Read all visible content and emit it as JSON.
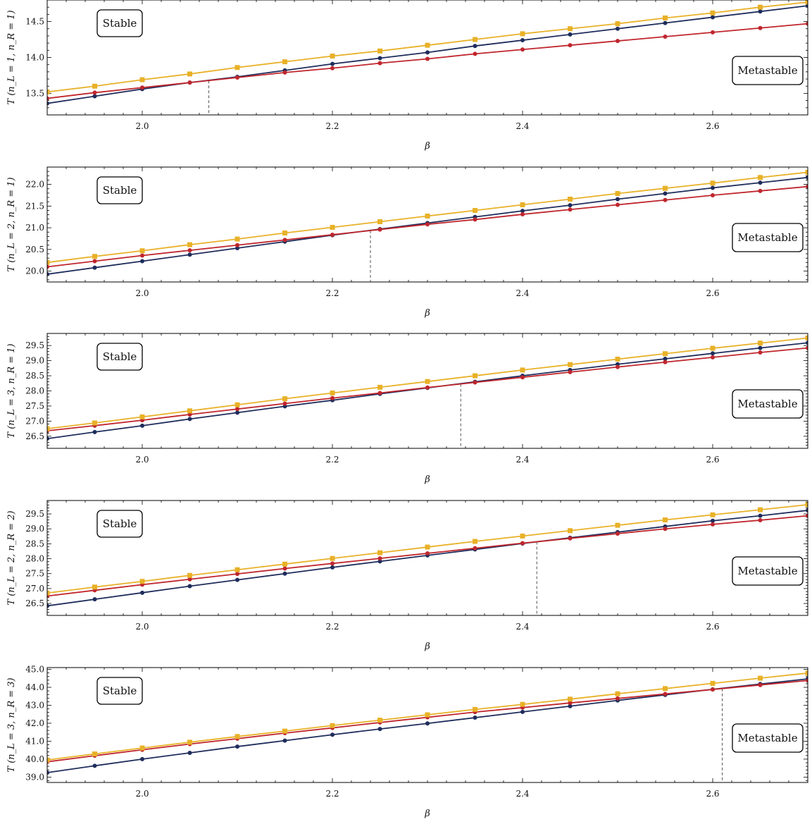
{
  "colors": {
    "series_a": "#1f2d5c",
    "series_b": "#c0262d",
    "series_c": "#e8b128",
    "divider": "#555555",
    "frame": "#000000"
  },
  "chart_data": [
    {
      "type": "line",
      "ylabel": "T (n_L = 1, n_R = 1)",
      "xlabel": "β",
      "xlim": [
        1.9,
        2.7
      ],
      "ylim": [
        13.2,
        14.8
      ],
      "xticks": [
        "2.0",
        "2.2",
        "2.4",
        "2.6"
      ],
      "yticks": [
        "13.5",
        "14.0",
        "14.5"
      ],
      "grid": false,
      "annotations": {
        "top_left": "Stable",
        "right": "Metastable"
      },
      "crossover_beta": 2.07,
      "x": [
        1.9,
        1.95,
        2.0,
        2.05,
        2.1,
        2.15,
        2.2,
        2.25,
        2.3,
        2.35,
        2.4,
        2.45,
        2.5,
        2.55,
        2.6,
        2.65,
        2.7
      ],
      "series": [
        {
          "marker": "circle",
          "color": "#1f2d5c",
          "values": [
            13.36,
            13.46,
            13.56,
            13.65,
            13.73,
            13.82,
            13.91,
            13.99,
            14.07,
            14.16,
            14.24,
            14.32,
            14.4,
            14.48,
            14.56,
            14.64,
            14.72
          ]
        },
        {
          "marker": "circle",
          "color": "#c0262d",
          "values": [
            13.43,
            13.51,
            13.58,
            13.65,
            13.72,
            13.79,
            13.85,
            13.92,
            13.98,
            14.05,
            14.11,
            14.17,
            14.23,
            14.29,
            14.35,
            14.41,
            14.47
          ]
        },
        {
          "marker": "square",
          "color": "#e8b128",
          "values": [
            13.52,
            13.6,
            13.69,
            13.77,
            13.86,
            13.94,
            14.02,
            14.09,
            14.17,
            14.25,
            14.33,
            14.4,
            14.47,
            14.55,
            14.62,
            14.7,
            14.77
          ]
        }
      ]
    },
    {
      "type": "line",
      "ylabel": "T (n_L = 2, n_R = 1)",
      "xlabel": "β",
      "xlim": [
        1.9,
        2.7
      ],
      "ylim": [
        19.75,
        22.4
      ],
      "xticks": [
        "2.0",
        "2.2",
        "2.4",
        "2.6"
      ],
      "yticks": [
        "20.0",
        "20.5",
        "21.0",
        "21.5",
        "22.0"
      ],
      "grid": false,
      "annotations": {
        "top_left": "Stable",
        "right": "Metastable"
      },
      "crossover_beta": 2.24,
      "x": [
        1.9,
        1.95,
        2.0,
        2.05,
        2.1,
        2.15,
        2.2,
        2.25,
        2.3,
        2.35,
        2.4,
        2.45,
        2.5,
        2.55,
        2.6,
        2.65,
        2.7
      ],
      "series": [
        {
          "marker": "circle",
          "color": "#1f2d5c",
          "values": [
            19.93,
            20.08,
            20.23,
            20.38,
            20.53,
            20.68,
            20.83,
            20.97,
            21.11,
            21.25,
            21.39,
            21.52,
            21.66,
            21.79,
            21.92,
            22.04,
            22.16
          ]
        },
        {
          "marker": "circle",
          "color": "#c0262d",
          "values": [
            20.1,
            20.23,
            20.36,
            20.48,
            20.6,
            20.72,
            20.84,
            20.96,
            21.08,
            21.19,
            21.31,
            21.42,
            21.53,
            21.64,
            21.75,
            21.85,
            21.95
          ]
        },
        {
          "marker": "square",
          "color": "#e8b128",
          "values": [
            20.2,
            20.34,
            20.47,
            20.61,
            20.74,
            20.88,
            21.01,
            21.14,
            21.27,
            21.4,
            21.53,
            21.66,
            21.79,
            21.91,
            22.03,
            22.16,
            22.28
          ]
        }
      ]
    },
    {
      "type": "line",
      "ylabel": "T (n_L = 3, n_R = 1)",
      "xlabel": "β",
      "xlim": [
        1.9,
        2.7
      ],
      "ylim": [
        26.1,
        29.9
      ],
      "xticks": [
        "2.0",
        "2.2",
        "2.4",
        "2.6"
      ],
      "yticks": [
        "26.5",
        "27.0",
        "27.5",
        "28.0",
        "28.5",
        "29.0",
        "29.5"
      ],
      "grid": false,
      "annotations": {
        "top_left": "Stable",
        "right": "Metastable"
      },
      "crossover_beta": 2.335,
      "x": [
        1.9,
        1.95,
        2.0,
        2.05,
        2.1,
        2.15,
        2.2,
        2.25,
        2.3,
        2.35,
        2.4,
        2.45,
        2.5,
        2.55,
        2.6,
        2.65,
        2.7
      ],
      "series": [
        {
          "marker": "circle",
          "color": "#1f2d5c",
          "values": [
            26.42,
            26.64,
            26.85,
            27.07,
            27.28,
            27.49,
            27.69,
            27.9,
            28.1,
            28.3,
            28.5,
            28.69,
            28.88,
            29.06,
            29.24,
            29.42,
            29.59
          ]
        },
        {
          "marker": "circle",
          "color": "#c0262d",
          "values": [
            26.68,
            26.85,
            27.03,
            27.22,
            27.4,
            27.58,
            27.76,
            27.93,
            28.11,
            28.28,
            28.45,
            28.62,
            28.79,
            28.95,
            29.11,
            29.27,
            29.42
          ]
        },
        {
          "marker": "square",
          "color": "#e8b128",
          "values": [
            26.75,
            26.94,
            27.14,
            27.34,
            27.54,
            27.74,
            27.93,
            28.12,
            28.31,
            28.5,
            28.69,
            28.87,
            29.05,
            29.23,
            29.41,
            29.58,
            29.75
          ]
        }
      ]
    },
    {
      "type": "line",
      "ylabel": "T (n_L = 2, n_R = 2)",
      "xlabel": "β",
      "xlim": [
        1.9,
        2.7
      ],
      "ylim": [
        26.1,
        29.95
      ],
      "xticks": [
        "2.0",
        "2.2",
        "2.4",
        "2.6"
      ],
      "yticks": [
        "26.5",
        "27.0",
        "27.5",
        "28.0",
        "28.5",
        "29.0",
        "29.5"
      ],
      "grid": false,
      "annotations": {
        "top_left": "Stable",
        "right": "Metastable"
      },
      "crossover_beta": 2.415,
      "x": [
        1.9,
        1.95,
        2.0,
        2.05,
        2.1,
        2.15,
        2.2,
        2.25,
        2.3,
        2.35,
        2.4,
        2.45,
        2.5,
        2.55,
        2.6,
        2.65,
        2.7
      ],
      "series": [
        {
          "marker": "circle",
          "color": "#1f2d5c",
          "values": [
            26.42,
            26.64,
            26.86,
            27.08,
            27.29,
            27.5,
            27.71,
            27.91,
            28.11,
            28.31,
            28.51,
            28.7,
            28.89,
            29.08,
            29.27,
            29.44,
            29.62
          ]
        },
        {
          "marker": "circle",
          "color": "#c0262d",
          "values": [
            26.75,
            26.94,
            27.13,
            27.31,
            27.49,
            27.67,
            27.84,
            28.01,
            28.18,
            28.35,
            28.52,
            28.68,
            28.84,
            29.0,
            29.15,
            29.29,
            29.44
          ]
        },
        {
          "marker": "square",
          "color": "#e8b128",
          "values": [
            26.85,
            27.05,
            27.24,
            27.44,
            27.63,
            27.82,
            28.01,
            28.2,
            28.39,
            28.58,
            28.76,
            28.94,
            29.12,
            29.3,
            29.47,
            29.64,
            29.81
          ]
        }
      ]
    },
    {
      "type": "line",
      "ylabel": "T (n_L = 3, n_R = 3)",
      "xlabel": "β",
      "xlim": [
        1.9,
        2.7
      ],
      "ylim": [
        38.7,
        45.1
      ],
      "xticks": [
        "2.0",
        "2.2",
        "2.4",
        "2.6"
      ],
      "yticks": [
        "39.0",
        "40.0",
        "41.0",
        "42.0",
        "43.0",
        "44.0",
        "45.0"
      ],
      "grid": false,
      "annotations": {
        "top_left": "Stable",
        "right": "Metastable"
      },
      "crossover_beta": 2.61,
      "x": [
        1.9,
        1.95,
        2.0,
        2.05,
        2.1,
        2.15,
        2.2,
        2.25,
        2.3,
        2.35,
        2.4,
        2.45,
        2.5,
        2.55,
        2.6,
        2.65,
        2.7
      ],
      "series": [
        {
          "marker": "circle",
          "color": "#1f2d5c",
          "values": [
            39.25,
            39.63,
            40.0,
            40.35,
            40.7,
            41.03,
            41.36,
            41.68,
            41.99,
            42.31,
            42.63,
            42.95,
            43.27,
            43.58,
            43.89,
            44.18,
            44.47
          ]
        },
        {
          "marker": "circle",
          "color": "#c0262d",
          "values": [
            39.85,
            40.19,
            40.52,
            40.84,
            41.14,
            41.45,
            41.74,
            42.04,
            42.33,
            42.62,
            42.87,
            43.13,
            43.38,
            43.63,
            43.88,
            44.13,
            44.38
          ]
        },
        {
          "marker": "square",
          "color": "#e8b128",
          "values": [
            39.95,
            40.29,
            40.62,
            40.94,
            41.26,
            41.56,
            41.87,
            42.17,
            42.47,
            42.77,
            43.05,
            43.34,
            43.64,
            43.93,
            44.22,
            44.51,
            44.79
          ]
        }
      ]
    }
  ]
}
